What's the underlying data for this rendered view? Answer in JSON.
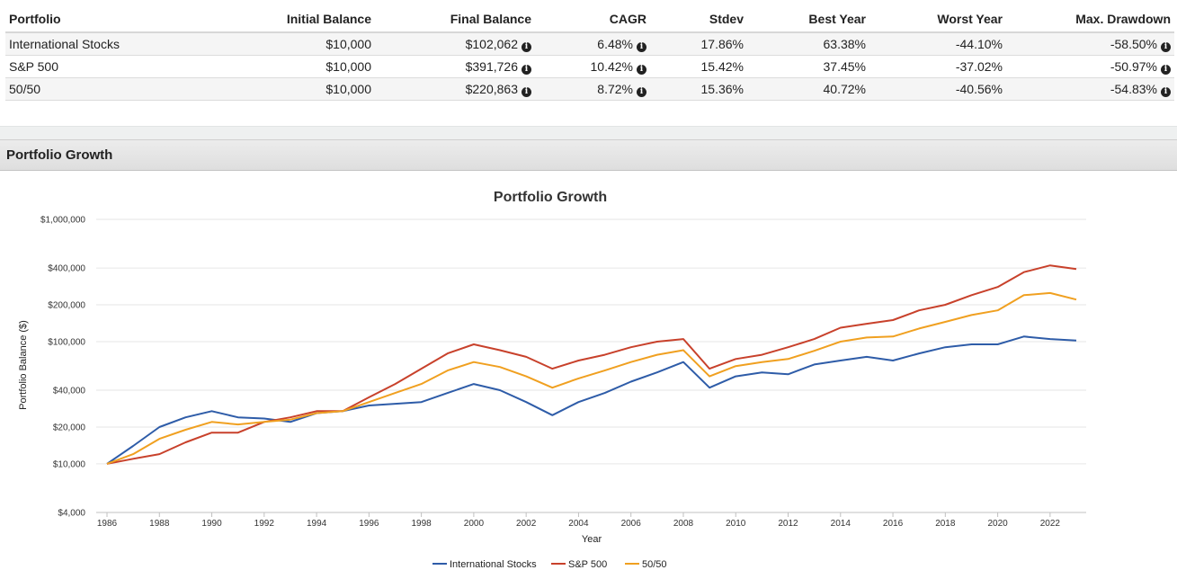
{
  "table": {
    "headers": [
      "Portfolio",
      "Initial Balance",
      "Final Balance",
      "CAGR",
      "Stdev",
      "Best Year",
      "Worst Year",
      "Max. Drawdown"
    ],
    "rows": [
      {
        "portfolio": "International Stocks",
        "initial": "$10,000",
        "final": "$102,062",
        "cagr": "6.48%",
        "stdev": "17.86%",
        "best": "63.38%",
        "worst": "-44.10%",
        "drawdown": "-58.50%"
      },
      {
        "portfolio": "S&P 500",
        "initial": "$10,000",
        "final": "$391,726",
        "cagr": "10.42%",
        "stdev": "15.42%",
        "best": "37.45%",
        "worst": "-37.02%",
        "drawdown": "-50.97%"
      },
      {
        "portfolio": "50/50",
        "initial": "$10,000",
        "final": "$220,863",
        "cagr": "8.72%",
        "stdev": "15.36%",
        "best": "40.72%",
        "worst": "-40.56%",
        "drawdown": "-54.83%"
      }
    ],
    "info_icon": "info-circle-icon"
  },
  "section": {
    "title": "Portfolio Growth"
  },
  "chart_data": {
    "type": "line",
    "title": "Portfolio Growth",
    "xlabel": "Year",
    "ylabel": "Portfolio Balance ($)",
    "y_scale": "log",
    "ylim": [
      4000,
      1000000
    ],
    "xlim": [
      1986,
      2023
    ],
    "y_ticks": [
      {
        "value": 4000,
        "label": "$4,000"
      },
      {
        "value": 10000,
        "label": "$10,000"
      },
      {
        "value": 20000,
        "label": "$20,000"
      },
      {
        "value": 40000,
        "label": "$40,000"
      },
      {
        "value": 100000,
        "label": "$100,000"
      },
      {
        "value": 200000,
        "label": "$200,000"
      },
      {
        "value": 400000,
        "label": "$400,000"
      },
      {
        "value": 1000000,
        "label": "$1,000,000"
      }
    ],
    "x_ticks": [
      "1986",
      "1988",
      "1990",
      "1992",
      "1994",
      "1996",
      "1998",
      "2000",
      "2002",
      "2004",
      "2006",
      "2008",
      "2010",
      "2012",
      "2014",
      "2016",
      "2018",
      "2020",
      "2022"
    ],
    "grid": true,
    "legend_position": "bottom",
    "x": [
      1986,
      1987,
      1988,
      1989,
      1990,
      1991,
      1992,
      1993,
      1994,
      1995,
      1996,
      1997,
      1998,
      1999,
      2000,
      2001,
      2002,
      2003,
      2004,
      2005,
      2006,
      2007,
      2008,
      2009,
      2010,
      2011,
      2012,
      2013,
      2014,
      2015,
      2016,
      2017,
      2018,
      2019,
      2020,
      2021,
      2022,
      2023
    ],
    "series": [
      {
        "name": "International Stocks",
        "color": "#2e5ca8",
        "values": [
          10000,
          14000,
          20000,
          24000,
          27000,
          24000,
          23500,
          22000,
          26000,
          27000,
          30000,
          31000,
          32000,
          38000,
          45000,
          40000,
          32000,
          25000,
          32000,
          38000,
          47000,
          56000,
          68000,
          42000,
          52000,
          56000,
          54000,
          65000,
          70000,
          75000,
          70000,
          80000,
          90000,
          95000,
          95000,
          110000,
          105000,
          102062
        ]
      },
      {
        "name": "S&P 500",
        "color": "#c8412b",
        "values": [
          10000,
          11000,
          12000,
          15000,
          18000,
          18000,
          22000,
          24000,
          27000,
          27000,
          35000,
          45000,
          60000,
          80000,
          95000,
          85000,
          75000,
          60000,
          70000,
          78000,
          90000,
          100000,
          105000,
          60000,
          72000,
          78000,
          90000,
          105000,
          130000,
          140000,
          150000,
          180000,
          200000,
          240000,
          280000,
          370000,
          420000,
          391726
        ]
      },
      {
        "name": "50/50",
        "color": "#f0a020",
        "values": [
          10000,
          12000,
          16000,
          19000,
          22000,
          21000,
          22000,
          23000,
          26000,
          27000,
          32000,
          38000,
          45000,
          58000,
          68000,
          62000,
          52000,
          42000,
          50000,
          58000,
          68000,
          78000,
          85000,
          52000,
          63000,
          68000,
          72000,
          84000,
          100000,
          108000,
          110000,
          128000,
          145000,
          165000,
          180000,
          240000,
          250000,
          220863
        ]
      }
    ]
  }
}
